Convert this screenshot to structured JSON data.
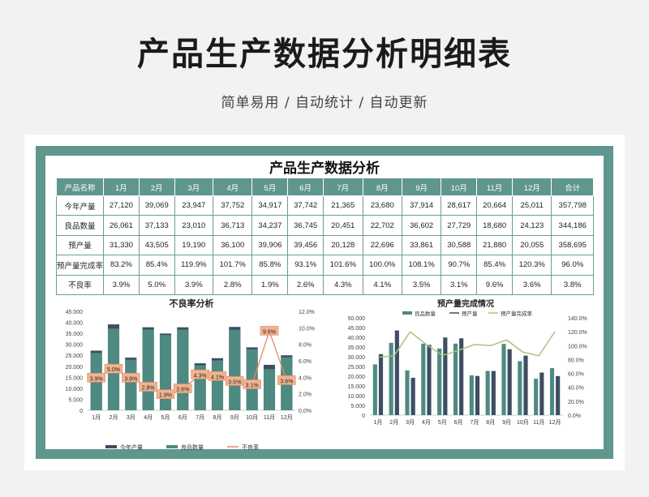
{
  "page": {
    "title": "产品生产数据分析明细表",
    "subtitle": "简单易用 / 自动统计 / 自动更新"
  },
  "table": {
    "title": "产品生产数据分析",
    "headers": [
      "产品名称",
      "1月",
      "2月",
      "3月",
      "4月",
      "5月",
      "6月",
      "7月",
      "8月",
      "9月",
      "10月",
      "11月",
      "12月",
      "合计"
    ],
    "rows": [
      [
        "今年产量",
        "27,120",
        "39,069",
        "23,947",
        "37,752",
        "34,917",
        "37,742",
        "21,365",
        "23,680",
        "37,914",
        "28,617",
        "20,664",
        "25,011",
        "357,798"
      ],
      [
        "良品数量",
        "26,061",
        "37,133",
        "23,010",
        "36,713",
        "34,237",
        "36,745",
        "20,451",
        "22,702",
        "36,602",
        "27,729",
        "18,680",
        "24,123",
        "344,186"
      ],
      [
        "预产量",
        "31,330",
        "43,505",
        "19,190",
        "36,100",
        "39,906",
        "39,456",
        "20,128",
        "22,696",
        "33,861",
        "30,588",
        "21,880",
        "20,055",
        "358,695"
      ],
      [
        "预产量完成率",
        "83.2%",
        "85.4%",
        "119.9%",
        "101.7%",
        "85.8%",
        "93.1%",
        "101.6%",
        "100.0%",
        "108.1%",
        "90.7%",
        "85.4%",
        "120.3%",
        "96.0%"
      ],
      [
        "不良率",
        "3.9%",
        "5.0%",
        "3.9%",
        "2.8%",
        "1.9%",
        "2.6%",
        "4.3%",
        "4.1%",
        "3.5%",
        "3.1%",
        "9.6%",
        "3.6%",
        "3.8%"
      ]
    ]
  },
  "chart_data": [
    {
      "type": "bar",
      "title": "不良率分析",
      "categories": [
        "1月",
        "2月",
        "3月",
        "4月",
        "5月",
        "6月",
        "7月",
        "8月",
        "9月",
        "10月",
        "11月",
        "12月"
      ],
      "ylim": [
        0,
        45000
      ],
      "yticks": [
        "0",
        "5.000",
        "10.000",
        "15.000",
        "20.000",
        "25.000",
        "30.000",
        "35.000",
        "40.000",
        "45.000"
      ],
      "y2lim": [
        0,
        12
      ],
      "y2ticks": [
        "0.0%",
        "2.0%",
        "4.0%",
        "6.0%",
        "8.0%",
        "10.0%",
        "12.0%"
      ],
      "series": [
        {
          "name": "今年产量",
          "values": [
            27120,
            39069,
            23947,
            37752,
            34917,
            37742,
            21365,
            23680,
            37914,
            28617,
            20664,
            25011
          ],
          "color": "#3d4d63"
        },
        {
          "name": "良品数量",
          "values": [
            26061,
            37133,
            23010,
            36713,
            34237,
            36745,
            20451,
            22702,
            36602,
            27729,
            18680,
            24123
          ],
          "color": "#4e8a82"
        },
        {
          "name": "不良率",
          "values": [
            3.9,
            5.0,
            3.9,
            2.8,
            1.9,
            2.6,
            4.3,
            4.1,
            3.5,
            3.1,
            9.6,
            3.6
          ],
          "labels": [
            "3.9%",
            "5.0%",
            "3.9%",
            "2.8%",
            "1.9%",
            "2.6%",
            "4.3%",
            "4.1%",
            "3.5%",
            "3.1%",
            "9.6%",
            "3.6%"
          ],
          "color": "#e9876c",
          "axis": "right"
        }
      ],
      "legend": "bottom"
    },
    {
      "type": "bar",
      "title": "预产量完成情况",
      "categories": [
        "1月",
        "2月",
        "3月",
        "4月",
        "5月",
        "6月",
        "7月",
        "8月",
        "9月",
        "10月",
        "11月",
        "12月"
      ],
      "ylim": [
        0,
        50000
      ],
      "yticks": [
        "0",
        "5.000",
        "10.000",
        "15.000",
        "20.000",
        "25.000",
        "30.000",
        "35.000",
        "40.000",
        "45.000",
        "50.000"
      ],
      "y2lim": [
        0,
        140
      ],
      "y2ticks": [
        "0.0%",
        "20.0%",
        "40.0%",
        "60.0%",
        "80.0%",
        "100.0%",
        "120.0%",
        "140.0%"
      ],
      "series": [
        {
          "name": "良品数量",
          "values": [
            26061,
            37133,
            23010,
            36713,
            34237,
            36745,
            20451,
            22702,
            36602,
            27729,
            18680,
            24123
          ],
          "color": "#4e8a82"
        },
        {
          "name": "预产量",
          "values": [
            31330,
            43505,
            19190,
            36100,
            39906,
            39456,
            20128,
            22696,
            33861,
            30588,
            21880,
            20055
          ],
          "color": "#3d4d63"
        },
        {
          "name": "预产量完成率",
          "values": [
            83.2,
            85.4,
            119.9,
            101.7,
            85.8,
            93.1,
            101.6,
            100.0,
            108.1,
            90.7,
            85.4,
            120.3
          ],
          "color": "#a8c47e",
          "axis": "right"
        }
      ],
      "legend": "top"
    }
  ]
}
